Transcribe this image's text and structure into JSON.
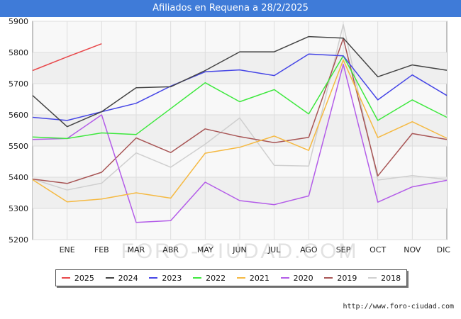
{
  "header": {
    "title": "Afiliados en Requena a 28/2/2025"
  },
  "watermark": "FORO-CIUDAD.COM",
  "source_url": "http://www.foro-ciudad.com",
  "chart_data": {
    "type": "line",
    "title": "Afiliados en Requena a 28/2/2025",
    "xlabel": "",
    "ylabel": "",
    "ylim": [
      5200,
      5900
    ],
    "y_ticks": [
      5200,
      5300,
      5400,
      5500,
      5600,
      5700,
      5800,
      5900
    ],
    "categories": [
      "",
      "ENE",
      "FEB",
      "MAR",
      "ABR",
      "MAY",
      "JUN",
      "JUL",
      "AGO",
      "SEP",
      "OCT",
      "NOV",
      "DIC"
    ],
    "grid": true,
    "legend_position": "bottom",
    "series": [
      {
        "name": "2025",
        "color": "#e8474a",
        "values": [
          5742,
          5786,
          5828,
          null,
          null,
          null,
          null,
          null,
          null,
          null,
          null,
          null,
          null
        ]
      },
      {
        "name": "2024",
        "color": "#444444",
        "values": [
          5662,
          5562,
          5610,
          5687,
          5690,
          5742,
          5802,
          5802,
          5851,
          5846,
          5722,
          5760,
          5743
        ]
      },
      {
        "name": "2023",
        "color": "#4545e6",
        "values": [
          5592,
          5582,
          5610,
          5637,
          5692,
          5738,
          5744,
          5726,
          5795,
          5789,
          5648,
          5728,
          5662
        ]
      },
      {
        "name": "2022",
        "color": "#3ee83e",
        "values": [
          5529,
          5524,
          5542,
          5537,
          5620,
          5703,
          5642,
          5681,
          5603,
          5789,
          5582,
          5648,
          5592
        ]
      },
      {
        "name": "2021",
        "color": "#f5b942",
        "values": [
          5392,
          5321,
          5330,
          5350,
          5333,
          5477,
          5496,
          5532,
          5486,
          5776,
          5527,
          5578,
          5525
        ]
      },
      {
        "name": "2020",
        "color": "#b35ce8",
        "values": [
          5521,
          5524,
          5600,
          5255,
          5261,
          5384,
          5325,
          5312,
          5340,
          5762,
          5320,
          5369,
          5390
        ]
      },
      {
        "name": "2019",
        "color": "#a85555",
        "values": [
          5394,
          5380,
          5416,
          5526,
          5479,
          5555,
          5530,
          5511,
          5528,
          5845,
          5404,
          5540,
          5521
        ]
      },
      {
        "name": "2018",
        "color": "#cfcfcf",
        "values": [
          5394,
          5359,
          5381,
          5478,
          5432,
          5506,
          5590,
          5438,
          5436,
          5890,
          5391,
          5405,
          5393
        ]
      }
    ]
  }
}
